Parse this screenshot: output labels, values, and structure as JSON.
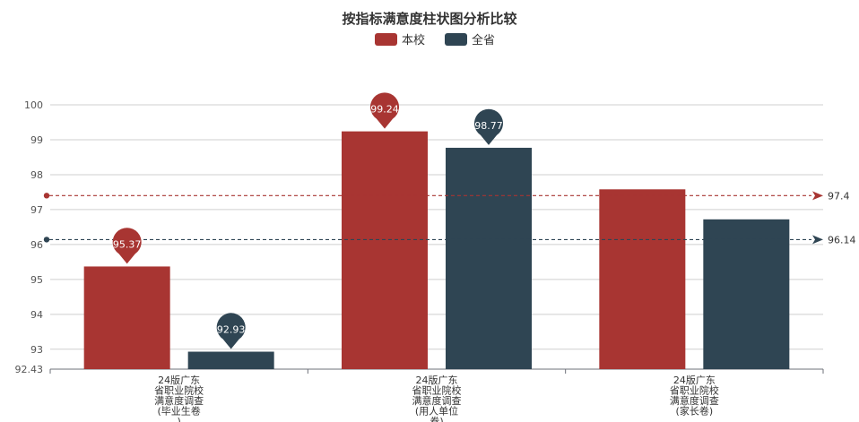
{
  "chart_data": {
    "type": "bar",
    "title": "按指标满意度柱状图分析比较",
    "categories": [
      [
        "24版广东",
        "省职业院校",
        "满意度调查",
        "(毕业生卷",
        ")"
      ],
      [
        "24版广东",
        "省职业院校",
        "满意度调查",
        "(用人单位",
        "卷)"
      ],
      [
        "24版广东",
        "省职业院校",
        "满意度调查",
        "(家长卷)"
      ]
    ],
    "series": [
      {
        "name": "本校",
        "color": "#a83532",
        "values": [
          95.37,
          99.24,
          97.58
        ],
        "pins": [
          true,
          true,
          false
        ],
        "pin_labels": [
          "95.37",
          "99.24",
          ""
        ]
      },
      {
        "name": "全省",
        "color": "#2f4553",
        "values": [
          92.93,
          98.77,
          96.72
        ],
        "pins": [
          true,
          true,
          false
        ],
        "pin_labels": [
          "92.93",
          "98.77",
          ""
        ]
      }
    ],
    "ylim": [
      92.43,
      100
    ],
    "yticks": [
      "92.43",
      "93",
      "94",
      "95",
      "96",
      "97",
      "98",
      "99",
      "100"
    ],
    "mark_lines": [
      {
        "series": "本校",
        "value": 97.4,
        "label": "97.4",
        "color": "#a83532"
      },
      {
        "series": "全省",
        "value": 96.14,
        "label": "96.14",
        "color": "#2f4553"
      }
    ],
    "grid": true,
    "legend": "top-center"
  }
}
